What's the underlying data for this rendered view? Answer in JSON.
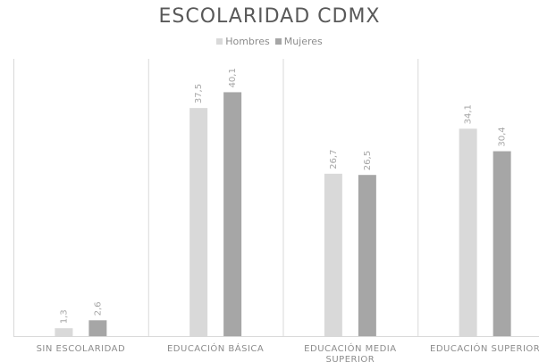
{
  "chart_data": {
    "type": "bar",
    "title": "ESCOLARIDAD CDMX",
    "categories": [
      [
        "SIN ESCOLARIDAD"
      ],
      [
        "EDUCACIÓN BÁSICA"
      ],
      [
        "EDUCACIÓN MEDIA",
        "SUPERIOR"
      ],
      [
        "EDUCACIÓN SUPERIOR"
      ]
    ],
    "series": [
      {
        "name": "Hombres",
        "values": [
          1.3,
          37.5,
          26.7,
          34.1
        ],
        "labels": [
          "1,3",
          "37,5",
          "26,7",
          "34,1"
        ],
        "color": "#d9d9d9"
      },
      {
        "name": "Mujeres",
        "values": [
          2.6,
          40.1,
          26.5,
          30.4
        ],
        "labels": [
          "2,6",
          "40,1",
          "26,5",
          "30,4"
        ],
        "color": "#a6a6a6"
      }
    ],
    "ylim": [
      0,
      45
    ],
    "grid": "vertical-category-separators",
    "legend_position": "top-center",
    "data_labels": true
  }
}
